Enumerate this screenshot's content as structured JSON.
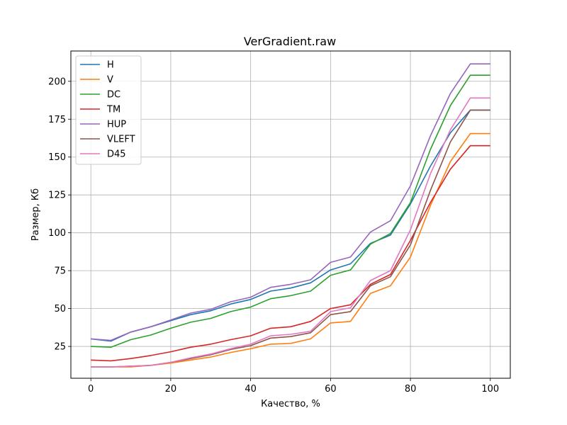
{
  "chart_data": {
    "type": "line",
    "title": "VerGradient.raw",
    "xlabel": "Качество, %",
    "ylabel": "Размер, Кб",
    "xlim": [
      -5,
      105
    ],
    "ylim": [
      4,
      220
    ],
    "xticks": [
      0,
      20,
      40,
      60,
      80,
      100
    ],
    "yticks": [
      25,
      50,
      75,
      100,
      125,
      150,
      175,
      200
    ],
    "grid": true,
    "legend_position": "top-left",
    "x": [
      0,
      5,
      10,
      15,
      20,
      25,
      30,
      35,
      40,
      45,
      50,
      55,
      60,
      65,
      70,
      75,
      80,
      85,
      90,
      95,
      100
    ],
    "series": [
      {
        "name": "H",
        "color": "#1f77b4",
        "values": [
          30,
          28.5,
          34.5,
          38,
          42,
          46,
          48.5,
          53,
          56,
          61.5,
          63.5,
          67,
          75.5,
          79.5,
          93,
          98.5,
          119,
          144,
          166,
          181,
          181
        ]
      },
      {
        "name": "V",
        "color": "#ff7f0e",
        "values": [
          11.5,
          11.5,
          11.5,
          12.5,
          14,
          16,
          18,
          21,
          23.5,
          26.5,
          27,
          30,
          40.5,
          41.5,
          60,
          65,
          84,
          118,
          147,
          165.5,
          165.5
        ]
      },
      {
        "name": "DC",
        "color": "#2ca02c",
        "values": [
          25,
          24.5,
          29.5,
          32.5,
          37,
          41,
          43.5,
          48,
          51,
          56.5,
          58.5,
          61.5,
          72,
          75.5,
          92.5,
          99.5,
          120,
          155,
          184,
          204,
          204
        ]
      },
      {
        "name": "TM",
        "color": "#d62728",
        "values": [
          16,
          15.5,
          17,
          19,
          21.5,
          24.5,
          26.5,
          29.5,
          32,
          37,
          38,
          41.5,
          50,
          52.5,
          66,
          72.5,
          95,
          120,
          142,
          157.5,
          157.5
        ]
      },
      {
        "name": "HUP",
        "color": "#9467bd",
        "values": [
          30,
          29,
          34.5,
          38,
          42.5,
          47,
          49.5,
          54.5,
          57.5,
          64,
          66,
          69,
          80.5,
          84,
          100.5,
          108,
          131,
          164,
          192,
          211.5,
          211.5
        ]
      },
      {
        "name": "VLEFT",
        "color": "#8c564b",
        "values": [
          11.5,
          11.5,
          12,
          12.5,
          14.5,
          17,
          19.5,
          23,
          25.5,
          30.5,
          31.5,
          34,
          46,
          48,
          65,
          71,
          92,
          128,
          160,
          181,
          181
        ]
      },
      {
        "name": "D45",
        "color": "#e377c2",
        "values": [
          11.5,
          11.5,
          12,
          12.5,
          14.5,
          17.5,
          20,
          23.5,
          26.5,
          32,
          33,
          35,
          48,
          50.5,
          68.5,
          75,
          102,
          139,
          168,
          189,
          189
        ]
      }
    ]
  }
}
